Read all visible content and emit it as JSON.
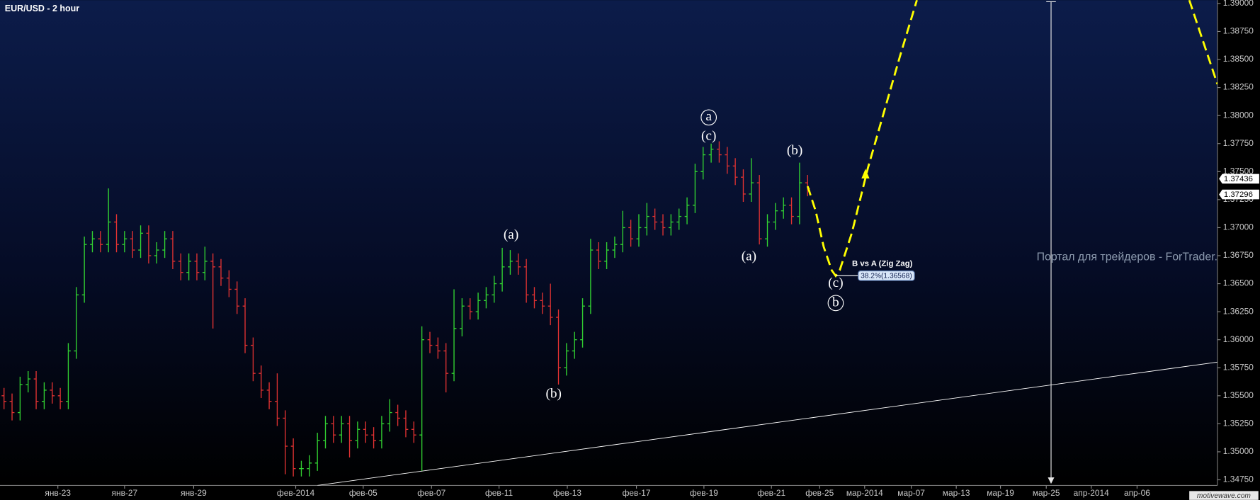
{
  "chart_data": {
    "type": "ohlc",
    "title": "EUR/USD - 2 hour",
    "up_color": "#32d232",
    "down_color": "#e03232",
    "xlim": [
      -0.5,
      151
    ],
    "ylim": [
      1.347,
      1.3903
    ],
    "ohlc": [
      [
        1.355,
        1.3557,
        1.3538,
        1.3545
      ],
      [
        1.3545,
        1.3552,
        1.3528,
        1.3535
      ],
      [
        1.3535,
        1.3567,
        1.3528,
        1.356
      ],
      [
        1.356,
        1.3572,
        1.3553,
        1.3565
      ],
      [
        1.3565,
        1.3572,
        1.3538,
        1.3545
      ],
      [
        1.3545,
        1.3562,
        1.3538,
        1.3555
      ],
      [
        1.3555,
        1.3562,
        1.3543,
        1.355
      ],
      [
        1.355,
        1.3557,
        1.3538,
        1.3545
      ],
      [
        1.3545,
        1.3597,
        1.3538,
        1.359
      ],
      [
        1.359,
        1.3647,
        1.3583,
        1.364
      ],
      [
        1.364,
        1.3692,
        1.3633,
        1.3685
      ],
      [
        1.3685,
        1.3697,
        1.3678,
        1.369
      ],
      [
        1.369,
        1.3697,
        1.3678,
        1.3685
      ],
      [
        1.3685,
        1.3735,
        1.3678,
        1.3705
      ],
      [
        1.3705,
        1.3712,
        1.3678,
        1.3685
      ],
      [
        1.3685,
        1.3697,
        1.3678,
        1.369
      ],
      [
        1.369,
        1.3697,
        1.3673,
        1.368
      ],
      [
        1.368,
        1.3702,
        1.3673,
        1.3695
      ],
      [
        1.3695,
        1.3702,
        1.3668,
        1.3675
      ],
      [
        1.3675,
        1.3687,
        1.3668,
        1.368
      ],
      [
        1.368,
        1.3697,
        1.3673,
        1.369
      ],
      [
        1.369,
        1.3697,
        1.3663,
        1.367
      ],
      [
        1.367,
        1.3677,
        1.3653,
        1.366
      ],
      [
        1.366,
        1.3677,
        1.3653,
        1.367
      ],
      [
        1.367,
        1.3677,
        1.3653,
        1.366
      ],
      [
        1.366,
        1.3683,
        1.3653,
        1.367
      ],
      [
        1.367,
        1.3677,
        1.361,
        1.3665
      ],
      [
        1.3665,
        1.3672,
        1.3648,
        1.3655
      ],
      [
        1.3655,
        1.3662,
        1.3638,
        1.3645
      ],
      [
        1.3645,
        1.3652,
        1.3623,
        1.363
      ],
      [
        1.363,
        1.3637,
        1.3588,
        1.3595
      ],
      [
        1.3595,
        1.3602,
        1.3563,
        1.357
      ],
      [
        1.357,
        1.3577,
        1.3548,
        1.3555
      ],
      [
        1.3555,
        1.3562,
        1.3538,
        1.3545
      ],
      [
        1.3545,
        1.357,
        1.3523,
        1.353
      ],
      [
        1.353,
        1.3537,
        1.348,
        1.3505
      ],
      [
        1.3505,
        1.3512,
        1.3478,
        1.3485
      ],
      [
        1.3485,
        1.3492,
        1.3478,
        1.3485
      ],
      [
        1.3485,
        1.3497,
        1.3478,
        1.349
      ],
      [
        1.349,
        1.3517,
        1.3483,
        1.351
      ],
      [
        1.351,
        1.3532,
        1.3503,
        1.3525
      ],
      [
        1.3525,
        1.3532,
        1.3508,
        1.3515
      ],
      [
        1.3515,
        1.3532,
        1.3508,
        1.3525
      ],
      [
        1.3525,
        1.3532,
        1.3495,
        1.351
      ],
      [
        1.351,
        1.3527,
        1.3503,
        1.352
      ],
      [
        1.352,
        1.3527,
        1.3508,
        1.3515
      ],
      [
        1.3515,
        1.3522,
        1.3503,
        1.351
      ],
      [
        1.351,
        1.3532,
        1.3503,
        1.3525
      ],
      [
        1.3525,
        1.3547,
        1.3518,
        1.3535
      ],
      [
        1.3535,
        1.3542,
        1.3523,
        1.353
      ],
      [
        1.353,
        1.3537,
        1.3513,
        1.352
      ],
      [
        1.352,
        1.3527,
        1.3508,
        1.3515
      ],
      [
        1.3515,
        1.3612,
        1.3483,
        1.36
      ],
      [
        1.36,
        1.3607,
        1.3588,
        1.3595
      ],
      [
        1.3595,
        1.3602,
        1.3583,
        1.359
      ],
      [
        1.359,
        1.3597,
        1.3553,
        1.357
      ],
      [
        1.357,
        1.3645,
        1.3563,
        1.361
      ],
      [
        1.361,
        1.3637,
        1.3603,
        1.363
      ],
      [
        1.363,
        1.3637,
        1.3618,
        1.3625
      ],
      [
        1.3625,
        1.3642,
        1.3618,
        1.3635
      ],
      [
        1.3635,
        1.3647,
        1.3628,
        1.364
      ],
      [
        1.364,
        1.3657,
        1.3633,
        1.365
      ],
      [
        1.365,
        1.3682,
        1.3643,
        1.3665
      ],
      [
        1.3665,
        1.368,
        1.3658,
        1.367
      ],
      [
        1.367,
        1.3677,
        1.3658,
        1.3665
      ],
      [
        1.3665,
        1.3672,
        1.3633,
        1.364
      ],
      [
        1.364,
        1.3647,
        1.3628,
        1.3635
      ],
      [
        1.3635,
        1.3642,
        1.3623,
        1.363
      ],
      [
        1.363,
        1.365,
        1.3613,
        1.362
      ],
      [
        1.362,
        1.3627,
        1.356,
        1.3575
      ],
      [
        1.3575,
        1.3597,
        1.3568,
        1.359
      ],
      [
        1.359,
        1.3607,
        1.3583,
        1.36
      ],
      [
        1.36,
        1.3637,
        1.3593,
        1.363
      ],
      [
        1.363,
        1.369,
        1.3623,
        1.368
      ],
      [
        1.368,
        1.3687,
        1.3663,
        1.367
      ],
      [
        1.367,
        1.3687,
        1.3663,
        1.368
      ],
      [
        1.368,
        1.3692,
        1.3673,
        1.3685
      ],
      [
        1.3685,
        1.3715,
        1.3678,
        1.37
      ],
      [
        1.37,
        1.3707,
        1.3683,
        1.369
      ],
      [
        1.369,
        1.3712,
        1.3683,
        1.37
      ],
      [
        1.37,
        1.3722,
        1.3693,
        1.371
      ],
      [
        1.371,
        1.3717,
        1.3698,
        1.3705
      ],
      [
        1.3705,
        1.3712,
        1.3693,
        1.37
      ],
      [
        1.37,
        1.3712,
        1.3693,
        1.3705
      ],
      [
        1.3705,
        1.3717,
        1.3698,
        1.371
      ],
      [
        1.371,
        1.3727,
        1.3703,
        1.372
      ],
      [
        1.372,
        1.3757,
        1.3713,
        1.375
      ],
      [
        1.375,
        1.3772,
        1.3743,
        1.3765
      ],
      [
        1.3765,
        1.3775,
        1.3758,
        1.377
      ],
      [
        1.377,
        1.3777,
        1.3758,
        1.3765
      ],
      [
        1.3765,
        1.3772,
        1.3748,
        1.3755
      ],
      [
        1.3755,
        1.3762,
        1.3738,
        1.3745
      ],
      [
        1.3745,
        1.3752,
        1.3723,
        1.373
      ],
      [
        1.373,
        1.3762,
        1.3723,
        1.374
      ],
      [
        1.374,
        1.3747,
        1.3685,
        1.369
      ],
      [
        1.369,
        1.3712,
        1.3683,
        1.3705
      ],
      [
        1.3705,
        1.3722,
        1.3698,
        1.3715
      ],
      [
        1.3715,
        1.3727,
        1.3708,
        1.372
      ],
      [
        1.372,
        1.3727,
        1.3703,
        1.371
      ],
      [
        1.371,
        1.3758,
        1.3703,
        1.374
      ],
      [
        1.374,
        1.3747,
        1.3728,
        1.3735
      ]
    ],
    "projection": {
      "color": "#ffff00",
      "x": [
        100,
        101,
        102,
        103,
        103.5,
        104,
        105.5,
        107.5,
        109.5,
        111.5,
        113.6,
        null,
        147.5,
        151
      ],
      "values": [
        1.3737,
        1.3715,
        1.3683,
        1.3662,
        1.3657,
        1.3662,
        1.3695,
        1.3753,
        1.3803,
        1.3853,
        1.3903,
        null,
        1.3903,
        1.3828
      ]
    },
    "trendline": {
      "color": "#ffffff",
      "x": [
        39,
        151
      ],
      "values": [
        1.347,
        1.358
      ]
    },
    "price_markers": [
      1.37436,
      1.37296
    ],
    "yticks": [
      {
        "value": 1.39,
        "label": "1.39000"
      },
      {
        "value": 1.3875,
        "label": "1.38750"
      },
      {
        "value": 1.385,
        "label": "1.38500"
      },
      {
        "value": 1.3825,
        "label": "1.38250"
      },
      {
        "value": 1.38,
        "label": "1.38000"
      },
      {
        "value": 1.3775,
        "label": "1.37750"
      },
      {
        "value": 1.375,
        "label": "1.37500"
      },
      {
        "value": 1.3725,
        "label": "1.37250"
      },
      {
        "value": 1.37,
        "label": "1.37000"
      },
      {
        "value": 1.3675,
        "label": "1.36750"
      },
      {
        "value": 1.365,
        "label": "1.36500"
      },
      {
        "value": 1.3625,
        "label": "1.36250"
      },
      {
        "value": 1.36,
        "label": "1.36000"
      },
      {
        "value": 1.3575,
        "label": "1.35750"
      },
      {
        "value": 1.355,
        "label": "1.35500"
      },
      {
        "value": 1.3525,
        "label": "1.35250"
      },
      {
        "value": 1.35,
        "label": "1.35000"
      },
      {
        "value": 1.3475,
        "label": "1.34750"
      }
    ],
    "xticks": [
      {
        "value": 6.7,
        "label": "янв-23"
      },
      {
        "value": 15,
        "label": "янв-27"
      },
      {
        "value": 23.6,
        "label": "янв-29"
      },
      {
        "value": 36.3,
        "label": "фев-2014"
      },
      {
        "value": 44.7,
        "label": "фев-05"
      },
      {
        "value": 53.2,
        "label": "фев-07"
      },
      {
        "value": 61.6,
        "label": "фев-11"
      },
      {
        "value": 70.1,
        "label": "фев-13"
      },
      {
        "value": 78.7,
        "label": "фев-17"
      },
      {
        "value": 87.1,
        "label": "фев-19"
      },
      {
        "value": 95.5,
        "label": "фев-21"
      },
      {
        "value": 101.5,
        "label": "фев-25"
      },
      {
        "value": 107.1,
        "label": "мар-2014"
      },
      {
        "value": 112.9,
        "label": "мар-07"
      },
      {
        "value": 118.5,
        "label": "мар-13"
      },
      {
        "value": 124,
        "label": "мар-19"
      },
      {
        "value": 129.7,
        "label": "мар-25"
      },
      {
        "value": 135.3,
        "label": "апр-2014"
      },
      {
        "value": 141,
        "label": "апр-06"
      }
    ],
    "annotations": [
      "a",
      "(c)",
      "(a)",
      "(b)",
      "(a)",
      "(b)",
      "(c)",
      "b"
    ],
    "fib": {
      "title": "B vs A (Zig Zag)",
      "label": "38.2%(1.36568)"
    },
    "watermark": "Портал для трейдеров - ForTrader.ru",
    "logo": "motivewave.com"
  }
}
